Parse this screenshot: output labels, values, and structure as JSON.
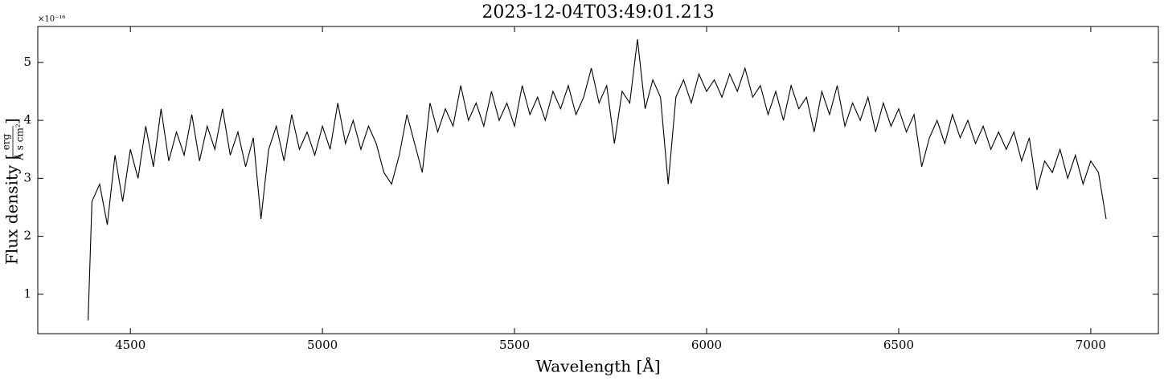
{
  "chart_data": {
    "type": "line",
    "title": "2023-12-04T03:49:01.213",
    "xlabel": "Wavelength [Å]",
    "ylabel": "Flux density [",
    "ylabel_unit_num": "erg",
    "ylabel_unit_den": "Å s cm²",
    "ylabel_close": "]",
    "y_offset_label": "×10⁻¹⁶",
    "color": "#000000",
    "xlim": [
      4259,
      7176
    ],
    "ylim": [
      0.32,
      5.62
    ],
    "xticks": [
      4500,
      5000,
      5500,
      6000,
      6500,
      7000
    ],
    "yticks": [
      1,
      2,
      3,
      4,
      5
    ],
    "x": [
      4390,
      4400,
      4420,
      4440,
      4460,
      4480,
      4500,
      4520,
      4540,
      4560,
      4580,
      4600,
      4620,
      4640,
      4660,
      4680,
      4700,
      4720,
      4740,
      4760,
      4780,
      4800,
      4820,
      4840,
      4860,
      4880,
      4900,
      4920,
      4940,
      4960,
      4980,
      5000,
      5020,
      5040,
      5060,
      5080,
      5100,
      5120,
      5140,
      5160,
      5180,
      5200,
      5220,
      5240,
      5260,
      5280,
      5300,
      5320,
      5340,
      5360,
      5380,
      5400,
      5420,
      5440,
      5460,
      5480,
      5500,
      5520,
      5540,
      5560,
      5580,
      5600,
      5620,
      5640,
      5660,
      5680,
      5700,
      5720,
      5740,
      5760,
      5780,
      5800,
      5820,
      5840,
      5860,
      5880,
      5900,
      5920,
      5940,
      5960,
      5980,
      6000,
      6020,
      6040,
      6060,
      6080,
      6100,
      6120,
      6140,
      6160,
      6180,
      6200,
      6220,
      6240,
      6260,
      6280,
      6300,
      6320,
      6340,
      6360,
      6380,
      6400,
      6420,
      6440,
      6460,
      6480,
      6500,
      6520,
      6540,
      6560,
      6580,
      6600,
      6620,
      6640,
      6660,
      6680,
      6700,
      6720,
      6740,
      6760,
      6780,
      6800,
      6820,
      6840,
      6860,
      6880,
      6900,
      6920,
      6940,
      6960,
      6980,
      7000,
      7020,
      7040
    ],
    "values": [
      0.55,
      2.6,
      2.9,
      2.2,
      3.4,
      2.6,
      3.5,
      3.0,
      3.9,
      3.2,
      4.2,
      3.3,
      3.8,
      3.4,
      4.1,
      3.3,
      3.9,
      3.5,
      4.2,
      3.4,
      3.8,
      3.2,
      3.7,
      2.3,
      3.5,
      3.9,
      3.3,
      4.1,
      3.5,
      3.8,
      3.4,
      3.9,
      3.5,
      4.3,
      3.6,
      4.0,
      3.5,
      3.9,
      3.6,
      3.1,
      2.9,
      3.4,
      4.1,
      3.6,
      3.1,
      4.3,
      3.8,
      4.2,
      3.9,
      4.6,
      4.0,
      4.3,
      3.9,
      4.5,
      4.0,
      4.3,
      3.9,
      4.6,
      4.1,
      4.4,
      4.0,
      4.5,
      4.2,
      4.6,
      4.1,
      4.4,
      4.9,
      4.3,
      4.6,
      3.6,
      4.5,
      4.3,
      5.4,
      4.2,
      4.7,
      4.4,
      2.9,
      4.4,
      4.7,
      4.3,
      4.8,
      4.5,
      4.7,
      4.4,
      4.8,
      4.5,
      4.9,
      4.4,
      4.6,
      4.1,
      4.5,
      4.0,
      4.6,
      4.2,
      4.4,
      3.8,
      4.5,
      4.1,
      4.6,
      3.9,
      4.3,
      4.0,
      4.4,
      3.8,
      4.3,
      3.9,
      4.2,
      3.8,
      4.1,
      3.2,
      3.7,
      4.0,
      3.6,
      4.1,
      3.7,
      4.0,
      3.6,
      3.9,
      3.5,
      3.8,
      3.5,
      3.8,
      3.3,
      3.7,
      2.8,
      3.3,
      3.1,
      3.5,
      3.0,
      3.4,
      2.9,
      3.3,
      3.1,
      2.3
    ]
  }
}
